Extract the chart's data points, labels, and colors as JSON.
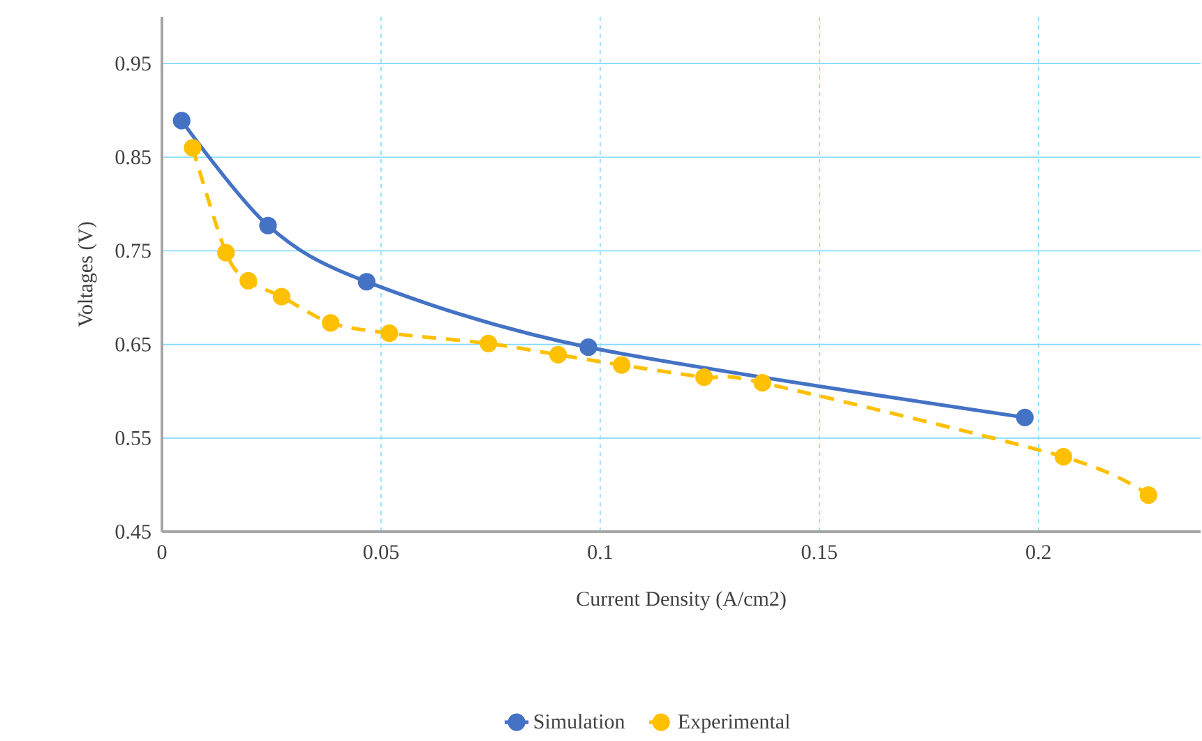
{
  "chart_data": {
    "type": "line",
    "xlabel": "Current Density (A/cm2)",
    "ylabel": "Voltages (V)",
    "xlim": [
      0,
      0.237
    ],
    "ylim": [
      0.45,
      1.0
    ],
    "xticks": [
      0,
      0.05,
      0.1,
      0.15,
      0.2
    ],
    "yticks": [
      0.45,
      0.55,
      0.65,
      0.75,
      0.85,
      0.95
    ],
    "grid": true,
    "legend": "bottom",
    "marker": "circle",
    "series": [
      {
        "name": "Simulation",
        "color": "#4472c4",
        "line_style": "solid",
        "x": [
          0.0045,
          0.0242,
          0.0467,
          0.0973,
          0.1969
        ],
        "values": [
          0.889,
          0.777,
          0.717,
          0.647,
          0.572
        ]
      },
      {
        "name": "Experimental",
        "color": "#ffc000",
        "line_style": "dashed",
        "x": [
          0.007,
          0.0146,
          0.0197,
          0.0273,
          0.0385,
          0.0519,
          0.0745,
          0.0904,
          0.1049,
          0.1237,
          0.137,
          0.2057,
          0.2251
        ],
        "values": [
          0.86,
          0.748,
          0.718,
          0.701,
          0.673,
          0.662,
          0.651,
          0.639,
          0.628,
          0.615,
          0.609,
          0.53,
          0.489
        ]
      }
    ]
  }
}
